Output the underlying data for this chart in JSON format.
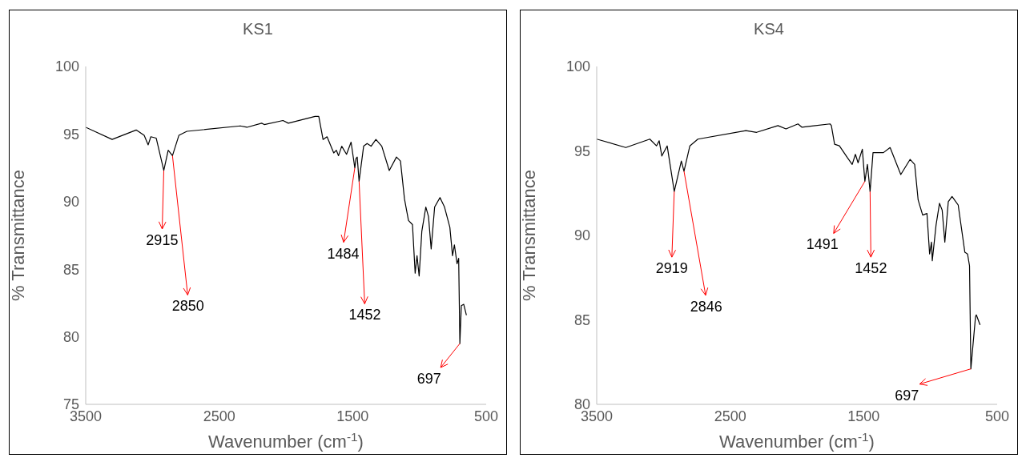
{
  "chart_data": [
    {
      "type": "line",
      "title": "KS1",
      "xlabel": "Wavenumber (cm$^{-1}$)",
      "ylabel": "% Transmittance",
      "xlim": [
        3500,
        500
      ],
      "xticks": [
        3500,
        2500,
        1500,
        500
      ],
      "ylim": [
        75,
        100
      ],
      "yticks": [
        75,
        80,
        85,
        90,
        95,
        100
      ],
      "series": [
        {
          "color": "#000000",
          "x": [
            3500,
            3302,
            3122,
            3062,
            3032,
            3012,
            2972,
            2915,
            2882,
            2850,
            2802,
            2742,
            2342,
            2292,
            2182,
            2162,
            2022,
            1982,
            1782,
            1754,
            1722,
            1692,
            1642,
            1622,
            1606,
            1582,
            1546,
            1512,
            1484,
            1475,
            1466,
            1452,
            1418,
            1392,
            1362,
            1326,
            1282,
            1226,
            1172,
            1142,
            1112,
            1082,
            1052,
            1032,
            1018,
            1002,
            982,
            952,
            932,
            912,
            886,
            846,
            812,
            772,
            752,
            738,
            718,
            706,
            697,
            686,
            668,
            648
          ],
          "values": [
            95.5,
            94.6,
            95.3,
            94.9,
            94.2,
            94.8,
            94.7,
            92.3,
            93.8,
            93.4,
            94.9,
            95.2,
            95.6,
            95.5,
            95.8,
            95.7,
            96.0,
            95.8,
            96.3,
            96.3,
            94.6,
            94.8,
            93.6,
            93.8,
            93.4,
            94.1,
            93.5,
            94.4,
            92.5,
            93.2,
            93.3,
            91.5,
            94.1,
            94.3,
            94.1,
            94.6,
            94.1,
            92.3,
            93.3,
            93.0,
            90.2,
            88.6,
            88.3,
            84.7,
            86.0,
            84.5,
            87.8,
            89.6,
            88.9,
            86.5,
            89.6,
            90.3,
            89.6,
            88.1,
            86.0,
            86.8,
            85.4,
            85.8,
            79.5,
            82.3,
            82.4,
            81.6
          ]
        }
      ],
      "annotations": [
        {
          "text": "2915",
          "x": 2915,
          "y": 92.3
        },
        {
          "text": "2850",
          "x": 2850,
          "y": 93.4
        },
        {
          "text": "1484",
          "x": 1484,
          "y": 92.5
        },
        {
          "text": "1452",
          "x": 1452,
          "y": 91.5
        },
        {
          "text": "697",
          "x": 697,
          "y": 79.5
        }
      ]
    },
    {
      "type": "line",
      "title": "KS4",
      "xlabel": "Wavenumber (cm$^{-1}$)",
      "ylabel": "% Transmittance",
      "xlim": [
        3500,
        500
      ],
      "xticks": [
        3500,
        2500,
        1500,
        500
      ],
      "ylim": [
        80,
        100
      ],
      "yticks": [
        80,
        85,
        90,
        95,
        100
      ],
      "series": [
        {
          "color": "#000000",
          "x": [
            3500,
            3282,
            3102,
            3052,
            3032,
            3012,
            2972,
            2919,
            2866,
            2846,
            2802,
            2742,
            2382,
            2302,
            2142,
            2082,
            1992,
            1962,
            1752,
            1742,
            1718,
            1682,
            1622,
            1586,
            1562,
            1542,
            1510,
            1491,
            1472,
            1452,
            1430,
            1352,
            1302,
            1222,
            1152,
            1118,
            1092,
            1058,
            1026,
            1006,
            992,
            986,
            958,
            932,
            912,
            892,
            866,
            838,
            792,
            742,
            722,
            707,
            697,
            662,
            656,
            628
          ],
          "values": [
            95.7,
            95.2,
            95.7,
            95.3,
            95.6,
            94.7,
            95.3,
            92.6,
            94.4,
            93.8,
            95.3,
            95.7,
            96.2,
            96.1,
            96.5,
            96.3,
            96.6,
            96.4,
            96.6,
            96.5,
            95.4,
            95.3,
            94.6,
            94.2,
            94.8,
            94.3,
            95.1,
            93.2,
            94.2,
            92.6,
            94.9,
            94.9,
            95.2,
            93.6,
            94.5,
            94.2,
            92.1,
            91.2,
            91.3,
            88.9,
            89.6,
            88.5,
            90.6,
            91.9,
            91.5,
            89.6,
            92.0,
            92.3,
            91.8,
            89.0,
            88.9,
            88.2,
            82.1,
            85.2,
            85.3,
            84.7
          ]
        }
      ],
      "annotations": [
        {
          "text": "2919",
          "x": 2919,
          "y": 92.6
        },
        {
          "text": "2846",
          "x": 2846,
          "y": 93.8
        },
        {
          "text": "1491",
          "x": 1491,
          "y": 93.2
        },
        {
          "text": "1452",
          "x": 1452,
          "y": 92.6
        },
        {
          "text": "697",
          "x": 697,
          "y": 82.1
        }
      ]
    }
  ]
}
